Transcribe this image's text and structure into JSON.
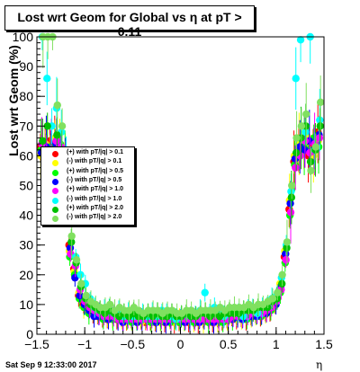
{
  "title": "Lost wrt Geom for Global vs  η at pT > 0.11",
  "footer": {
    "date": "Sat Sep  9 12:33:00 2017"
  },
  "chart_data": {
    "type": "scatter",
    "title": "Lost wrt Geom for Global vs  η at pT > 0.11",
    "xlabel": "η",
    "ylabel": "Lost wrt Geom (%)",
    "xlim": [
      -1.5,
      1.5
    ],
    "ylim": [
      0,
      100
    ],
    "x_ticks": [
      -1.5,
      -1,
      -0.5,
      0,
      0.5,
      1,
      1.5
    ],
    "x_tick_labels": [
      "−1.5",
      "−1",
      "−0.5",
      "0",
      "0.5",
      "1",
      "1.5"
    ],
    "y_ticks": [
      0,
      10,
      20,
      30,
      40,
      50,
      60,
      70,
      80,
      90,
      100
    ],
    "y_tick_labels": [
      "0",
      "10",
      "20",
      "30",
      "40",
      "50",
      "60",
      "70",
      "80",
      "90",
      "100"
    ],
    "grid": false,
    "legend_position": "middle-left",
    "x": [
      -1.45,
      -1.4,
      -1.35,
      -1.3,
      -1.25,
      -1.2,
      -1.15,
      -1.1,
      -1.05,
      -1.0,
      -0.95,
      -0.9,
      -0.85,
      -0.8,
      -0.75,
      -0.7,
      -0.65,
      -0.6,
      -0.55,
      -0.5,
      -0.45,
      -0.4,
      -0.35,
      -0.3,
      -0.25,
      -0.2,
      -0.15,
      -0.1,
      -0.05,
      0.0,
      0.05,
      0.1,
      0.15,
      0.2,
      0.25,
      0.3,
      0.35,
      0.4,
      0.45,
      0.5,
      0.55,
      0.6,
      0.65,
      0.7,
      0.75,
      0.8,
      0.85,
      0.9,
      0.95,
      1.0,
      1.05,
      1.1,
      1.15,
      1.2,
      1.25,
      1.3,
      1.35,
      1.4,
      1.45
    ],
    "series": [
      {
        "name": "(+) with pT/|q| > 0.1",
        "color": "#ff0000",
        "values": [
          63,
          62,
          65,
          63,
          61,
          59,
          30,
          22,
          13,
          10,
          8,
          7,
          6,
          6,
          5,
          6,
          5,
          5,
          5,
          5,
          5,
          5,
          4,
          5,
          4,
          5,
          4,
          5,
          4,
          4,
          5,
          4,
          5,
          4,
          5,
          5,
          4,
          5,
          5,
          5,
          5,
          5,
          5,
          5,
          6,
          6,
          6,
          7,
          8,
          10,
          15,
          26,
          42,
          58,
          62,
          66,
          60,
          63,
          68
        ]
      },
      {
        "name": "(-) with pT/|q| > 0.1",
        "color": "#ffff00",
        "values": [
          60,
          64,
          58,
          66,
          62,
          57,
          28,
          21,
          14,
          9,
          8,
          7,
          7,
          6,
          6,
          5,
          6,
          5,
          4,
          5,
          5,
          4,
          5,
          5,
          5,
          4,
          5,
          5,
          4,
          5,
          4,
          5,
          4,
          5,
          4,
          5,
          5,
          4,
          5,
          5,
          6,
          5,
          5,
          6,
          6,
          6,
          7,
          7,
          9,
          11,
          17,
          28,
          45,
          60,
          64,
          63,
          66,
          60,
          65
        ]
      },
      {
        "name": "(+) with pT/|q| > 0.5",
        "color": "#00ff00",
        "values": [
          62,
          60,
          63,
          60,
          64,
          58,
          26,
          20,
          12,
          9,
          7,
          7,
          6,
          5,
          6,
          5,
          5,
          5,
          5,
          4,
          5,
          5,
          5,
          4,
          5,
          5,
          5,
          4,
          5,
          4,
          5,
          5,
          4,
          5,
          5,
          4,
          5,
          5,
          4,
          6,
          5,
          6,
          6,
          5,
          6,
          7,
          6,
          8,
          8,
          10,
          14,
          24,
          40,
          57,
          61,
          64,
          62,
          66,
          63
        ]
      },
      {
        "name": "(-) with pT/|q| > 0.5",
        "color": "#0000ff",
        "values": [
          61,
          63,
          61,
          64,
          60,
          60,
          29,
          19,
          13,
          10,
          8,
          6,
          6,
          6,
          5,
          6,
          5,
          4,
          5,
          5,
          4,
          5,
          5,
          5,
          4,
          5,
          4,
          5,
          5,
          5,
          4,
          5,
          5,
          4,
          5,
          5,
          4,
          5,
          5,
          5,
          5,
          6,
          5,
          6,
          6,
          6,
          7,
          7,
          9,
          10,
          16,
          27,
          44,
          59,
          63,
          62,
          65,
          62,
          67
        ]
      },
      {
        "name": "(+) with pT/|q| > 1.0",
        "color": "#ff00ff",
        "values": [
          64,
          61,
          62,
          65,
          63,
          56,
          27,
          23,
          15,
          11,
          9,
          8,
          7,
          6,
          6,
          6,
          5,
          5,
          5,
          5,
          5,
          5,
          5,
          5,
          5,
          5,
          5,
          5,
          5,
          5,
          5,
          5,
          5,
          5,
          5,
          5,
          5,
          5,
          5,
          5,
          6,
          6,
          6,
          6,
          7,
          7,
          7,
          8,
          9,
          11,
          15,
          25,
          41,
          56,
          60,
          65,
          61,
          64,
          66
        ]
      },
      {
        "name": "(-) with pT/|q| > 1.0",
        "color": "#00ffff",
        "values": [
          100,
          86,
          70,
          76,
          68,
          62,
          45,
          26,
          20,
          17,
          12,
          9,
          8,
          8,
          9,
          7,
          8,
          6,
          7,
          6,
          6,
          7,
          6,
          7,
          6,
          8,
          7,
          6,
          5,
          6,
          7,
          6,
          7,
          8,
          14,
          8,
          9,
          7,
          6,
          7,
          8,
          7,
          6,
          8,
          9,
          7,
          9,
          10,
          12,
          13,
          19,
          30,
          48,
          86,
          99,
          68,
          100,
          62,
          72
        ]
      },
      {
        "name": "(+) with pT/|q| > 2.0",
        "color": "#00c000",
        "values": [
          65,
          70,
          55,
          67,
          58,
          54,
          31,
          24,
          16,
          12,
          10,
          9,
          8,
          7,
          8,
          7,
          6,
          7,
          6,
          7,
          6,
          6,
          7,
          6,
          7,
          6,
          6,
          7,
          6,
          6,
          7,
          6,
          6,
          7,
          7,
          6,
          7,
          6,
          7,
          7,
          7,
          7,
          8,
          8,
          8,
          9,
          9,
          9,
          11,
          12,
          17,
          29,
          46,
          61,
          66,
          70,
          58,
          62,
          70
        ]
      },
      {
        "name": "(-) with pT/|q| > 2.0",
        "color": "#80e060",
        "values": [
          100,
          100,
          100,
          77,
          70,
          50,
          33,
          25,
          17,
          13,
          11,
          10,
          9,
          9,
          10,
          8,
          9,
          8,
          8,
          9,
          8,
          7,
          8,
          8,
          8,
          7,
          8,
          8,
          7,
          7,
          8,
          8,
          7,
          8,
          8,
          8,
          8,
          9,
          8,
          9,
          9,
          9,
          9,
          10,
          9,
          10,
          10,
          11,
          12,
          14,
          20,
          31,
          50,
          66,
          70,
          74,
          55,
          63,
          78
        ]
      }
    ]
  }
}
